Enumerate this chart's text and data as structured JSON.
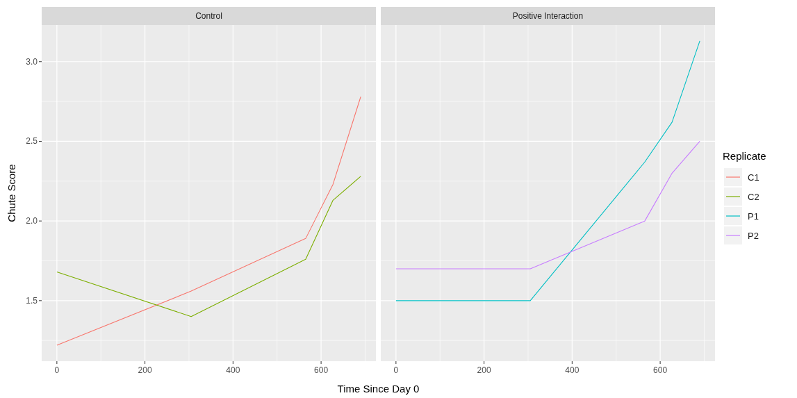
{
  "chart_data": [
    {
      "type": "line",
      "title": "Control",
      "xlabel": "Time Since Day 0",
      "ylabel": "Chute Score",
      "xlim": [
        -34.5,
        724.5
      ],
      "ylim": [
        1.12,
        3.23
      ],
      "xticks": [
        0,
        {
          "value": 100,
          "label": null
        },
        200,
        {
          "value": 300,
          "label": null
        },
        400,
        {
          "value": 500,
          "label": null
        },
        600,
        {
          "value": 700,
          "label": null
        }
      ],
      "yticks": [
        {
          "value": 1.25,
          "label": null
        },
        1.5,
        {
          "value": 1.75,
          "label": null
        },
        {
          "value": 2,
          "label": "2.0"
        },
        {
          "value": 2.25,
          "label": null
        },
        2.5,
        {
          "value": 2.75,
          "label": null
        },
        {
          "value": 3,
          "label": "3.0"
        }
      ],
      "x": [
        0,
        305,
        565,
        627,
        690
      ],
      "grid": true,
      "legend": "right",
      "series": [
        {
          "name": "C1",
          "color": "#f8766d",
          "values": [
            1.22,
            1.56,
            1.89,
            2.23,
            2.78
          ]
        },
        {
          "name": "C2",
          "color": "#7cae00",
          "values": [
            1.68,
            1.4,
            1.76,
            2.13,
            2.28
          ]
        }
      ]
    },
    {
      "type": "line",
      "title": "Positive Interaction",
      "legend_title": "Replicate",
      "xlim": [
        -34.5,
        724.5
      ],
      "ylim": [
        1.12,
        3.23
      ],
      "xticks": [
        0,
        {
          "value": 100,
          "label": null
        },
        200,
        {
          "value": 300,
          "label": null
        },
        400,
        {
          "value": 500,
          "label": null
        },
        600,
        {
          "value": 700,
          "label": null
        }
      ],
      "yticks": [
        {
          "value": 1.25,
          "label": null
        },
        1.5,
        {
          "value": 1.75,
          "label": null
        },
        2,
        {
          "value": 2.25,
          "label": null
        },
        2.5,
        {
          "value": 2.75,
          "label": null
        },
        3
      ],
      "x": [
        0,
        305,
        565,
        627,
        690
      ],
      "grid": true,
      "legend": "right",
      "tick_labels": "x",
      "series": [
        {
          "name": "P1",
          "color": "#00bfc4",
          "values": [
            1.5,
            1.5,
            2.37,
            2.62,
            3.13
          ]
        },
        {
          "name": "P2",
          "color": "#c77cff",
          "values": [
            1.7,
            1.7,
            2.0,
            2.3,
            2.5
          ]
        }
      ]
    }
  ]
}
